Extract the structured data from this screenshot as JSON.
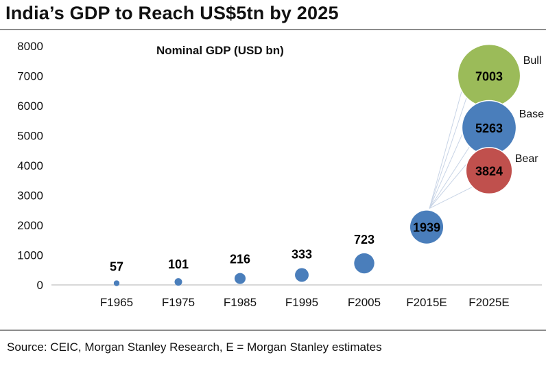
{
  "title": "India’s GDP to Reach US$5tn by 2025",
  "source": "Source: CEIC, Morgan Stanley Research, E = Morgan Stanley estimates",
  "chart_data": {
    "type": "scatter",
    "title": "Nominal GDP (USD bn)",
    "xlabel": "",
    "ylabel": "",
    "ylim": [
      0,
      8000
    ],
    "yticks": [
      0,
      1000,
      2000,
      3000,
      4000,
      5000,
      6000,
      7000,
      8000
    ],
    "categories": [
      "F1965",
      "F1975",
      "F1985",
      "F1995",
      "F2005",
      "F2015E",
      "F2025E"
    ],
    "grid": false,
    "legend": "none",
    "series": [
      {
        "color": "#4A7EBB",
        "points": [
          {
            "x": "F1965",
            "y": 57,
            "label": "57"
          },
          {
            "x": "F1975",
            "y": 101,
            "label": "101"
          },
          {
            "x": "F1985",
            "y": 216,
            "label": "216"
          },
          {
            "x": "F1995",
            "y": 333,
            "label": "333"
          },
          {
            "x": "F2005",
            "y": 723,
            "label": "723"
          },
          {
            "x": "F2015E",
            "y": 1939,
            "label": "1939"
          }
        ]
      }
    ],
    "scenarios": [
      {
        "name": "Bull",
        "x": "F2025E",
        "y": 7003,
        "label": "7003",
        "color": "#9BBB59"
      },
      {
        "name": "Base",
        "x": "F2025E",
        "y": 5263,
        "label": "5263",
        "color": "#4A7EBB"
      },
      {
        "name": "Bear",
        "x": "F2025E",
        "y": 3824,
        "label": "3824",
        "color": "#C0504D"
      }
    ]
  }
}
